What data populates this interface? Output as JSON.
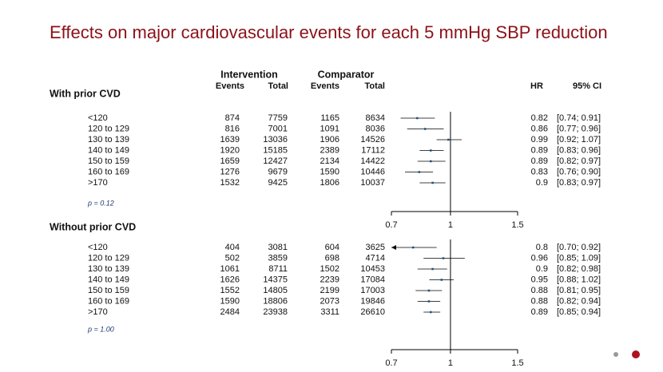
{
  "title": "Effects on major cardiovascular events for each 5 mmHg SBP reduction",
  "headers": {
    "intervention": "Intervention",
    "comparator": "Comparator",
    "events": "Events",
    "total": "Total",
    "hr": "HR",
    "ci": "95% CI"
  },
  "chart_data": [
    {
      "type": "forest",
      "title": "With prior CVD",
      "categories": [
        "<120",
        "120 to 129",
        "130 to 139",
        "140 to 149",
        "150 to 159",
        "160 to 169",
        ">170"
      ],
      "intervention_events": [
        874,
        816,
        1639,
        1920,
        1659,
        1276,
        1532
      ],
      "intervention_total": [
        7759,
        7001,
        13036,
        15185,
        12427,
        9679,
        9425
      ],
      "comparator_events": [
        1165,
        1091,
        1906,
        2389,
        2134,
        1590,
        1806
      ],
      "comparator_total": [
        8634,
        8036,
        14526,
        17112,
        14422,
        10446,
        10037
      ],
      "values": [
        0.82,
        0.86,
        0.99,
        0.89,
        0.89,
        0.83,
        0.9
      ],
      "ci_lower": [
        0.74,
        0.77,
        0.92,
        0.83,
        0.82,
        0.76,
        0.83
      ],
      "ci_upper": [
        0.91,
        0.96,
        1.07,
        0.96,
        0.97,
        0.9,
        0.97
      ],
      "ci_labels": [
        "[0.74; 0.91]",
        "[0.77; 0.96]",
        "[0.92; 1.07]",
        "[0.83; 0.96]",
        "[0.82; 0.97]",
        "[0.76; 0.90]",
        "[0.83; 0.97]"
      ],
      "annotation": "p = 0.12",
      "xlim": [
        0.7,
        1.5
      ],
      "xticks": [
        0.7,
        1,
        1.5
      ],
      "log_x": true,
      "color": "#1f4e79"
    },
    {
      "type": "forest",
      "title": "Without  prior CVD",
      "categories": [
        "<120",
        "120 to 129",
        "130 to 139",
        "140 to 149",
        "150 to 159",
        "160 to 169",
        ">170"
      ],
      "intervention_events": [
        404,
        502,
        1061,
        1626,
        1552,
        1590,
        2484
      ],
      "intervention_total": [
        3081,
        3859,
        8711,
        14375,
        14805,
        18806,
        23938
      ],
      "comparator_events": [
        604,
        698,
        1502,
        2239,
        2199,
        2073,
        3311
      ],
      "comparator_total": [
        3625,
        4714,
        10453,
        17084,
        17003,
        19846,
        26610
      ],
      "values": [
        0.8,
        0.96,
        0.9,
        0.95,
        0.88,
        0.88,
        0.89
      ],
      "ci_lower": [
        0.7,
        0.85,
        0.82,
        0.88,
        0.81,
        0.82,
        0.85
      ],
      "ci_upper": [
        0.92,
        1.09,
        0.98,
        1.02,
        0.95,
        0.94,
        0.94
      ],
      "ci_labels": [
        "[0.70; 0.92]",
        "[0.85; 1.09]",
        "[0.82; 0.98]",
        "[0.88; 1.02]",
        "[0.81; 0.95]",
        "[0.82; 0.94]",
        "[0.85; 0.94]"
      ],
      "annotation": "p = 1.00",
      "xlim": [
        0.7,
        1.5
      ],
      "xticks": [
        0.7,
        1,
        1.5
      ],
      "log_x": true,
      "color": "#1f4e79"
    }
  ]
}
